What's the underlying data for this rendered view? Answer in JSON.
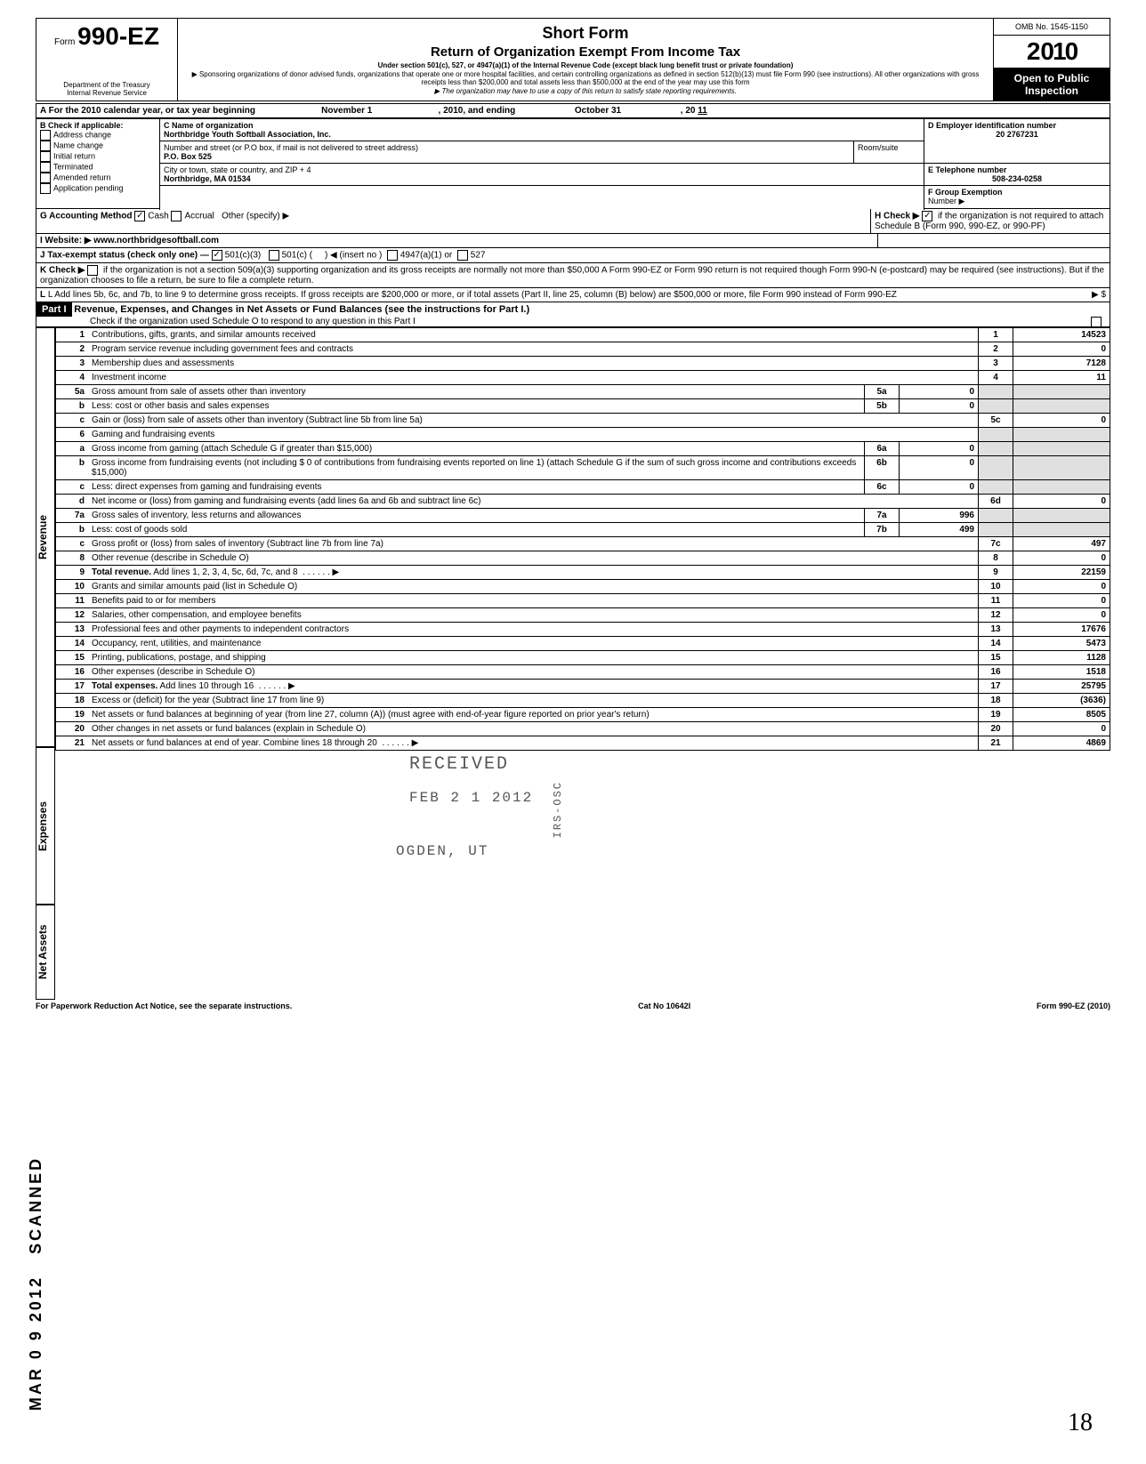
{
  "header": {
    "form_prefix": "Form",
    "form_number": "990-EZ",
    "dept": "Department of the Treasury\nInternal Revenue Service",
    "title1": "Short Form",
    "title2": "Return of Organization Exempt From Income Tax",
    "subtitle": "Under section 501(c), 527, or 4947(a)(1) of the Internal Revenue Code (except black lung benefit trust or private foundation)",
    "note1": "▶ Sponsoring organizations of donor advised funds, organizations that operate one or more hospital facilities, and certain controlling organizations as defined in section 512(b)(13) must file Form 990 (see instructions). All other organizations with gross receipts less than $200,000 and total assets less than $500,000 at the end of the year may use this form",
    "note2": "▶ The organization may have to use a copy of this return to satisfy state reporting requirements.",
    "omb": "OMB No. 1545-1150",
    "year_prefix": "2",
    "year_digits": "010",
    "open": "Open to Public Inspection"
  },
  "period": {
    "line_a": "A  For the 2010 calendar year, or tax year beginning",
    "begin": "November 1",
    "mid": ", 2010, and ending",
    "end": "October 31",
    "end2": ", 20",
    "end_year": "11"
  },
  "checkboxes": {
    "b_label": "B  Check if applicable:",
    "address_change": "Address change",
    "name_change": "Name change",
    "initial_return": "Initial return",
    "terminated": "Terminated",
    "amended_return": "Amended return",
    "application_pending": "Application pending"
  },
  "org": {
    "c_label": "C  Name of organization",
    "name": "Northbridge Youth Softball Association, Inc.",
    "addr_label": "Number and street (or P.O  box, if mail is not delivered to street address)",
    "room_label": "Room/suite",
    "street": "P.O. Box 525",
    "city_label": "City or town, state or country, and ZIP + 4",
    "city": "Northbridge, MA  01534",
    "d_label": "D Employer identification number",
    "ein": "20 2767231",
    "e_label": "E  Telephone number",
    "phone": "508-234-0258",
    "f_label": "F  Group Exemption",
    "f_label2": "Number  ▶"
  },
  "lines_g_k": {
    "g": "G  Accounting Method",
    "cash": "Cash",
    "accrual": "Accrual",
    "other": "Other (specify) ▶",
    "h": "H  Check  ▶",
    "h_text": "if the organization is not required to attach Schedule B (Form 990, 990-EZ, or 990-PF)",
    "i": "I   Website: ▶",
    "website": "www.northbridgesoftball.com",
    "j": "J  Tax-exempt status (check only one) —",
    "j_501c3": "501(c)(3)",
    "j_501c": "501(c) (",
    "j_insert": ")  ◀  (insert no )",
    "j_4947": "4947(a)(1) or",
    "j_527": "527",
    "k": "K  Check  ▶",
    "k_text": "if the organization is not a section 509(a)(3) supporting organization and its gross receipts are normally not more than $50,000   A Form 990-EZ or Form 990 return is not required though Form 990-N (e-postcard) may be required (see instructions). But if the organization chooses to file a return, be sure to file a complete return.",
    "l": "L  Add lines 5b, 6c, and 7b, to line 9 to determine gross receipts. If gross receipts are $200,000 or more, or if total assets (Part II, line  25, column (B) below) are $500,000 or more, file Form 990 instead of Form 990-EZ",
    "l_arrow": "▶   $"
  },
  "part1": {
    "label": "Part I",
    "title": "Revenue, Expenses, and Changes in Net Assets or Fund Balances (see the instructions for Part I.)",
    "check_note": "Check if the organization used Schedule O to respond to any question in this Part I"
  },
  "vert_labels": {
    "revenue": "Revenue",
    "expenses": "Expenses",
    "net_assets": "Net Assets"
  },
  "rows": [
    {
      "n": "1",
      "desc": "Contributions, gifts, grants, and similar amounts received",
      "box": "1",
      "amt": "14523"
    },
    {
      "n": "2",
      "desc": "Program service revenue including government fees and contracts",
      "box": "2",
      "amt": "0"
    },
    {
      "n": "3",
      "desc": "Membership dues and assessments",
      "box": "3",
      "amt": "7128"
    },
    {
      "n": "4",
      "desc": "Investment income",
      "box": "4",
      "amt": "11"
    },
    {
      "n": "5a",
      "desc": "Gross amount from sale of assets other than inventory",
      "sub": "5a",
      "subamt": "0"
    },
    {
      "n": "b",
      "desc": "Less: cost or other basis and sales expenses",
      "sub": "5b",
      "subamt": "0"
    },
    {
      "n": "c",
      "desc": "Gain or (loss) from sale of assets other than inventory (Subtract line 5b from line 5a)",
      "box": "5c",
      "amt": "0"
    },
    {
      "n": "6",
      "desc": "Gaming and fundraising events"
    },
    {
      "n": "a",
      "desc": "Gross income from gaming (attach Schedule G if greater than $15,000)",
      "sub": "6a",
      "subamt": "0"
    },
    {
      "n": "b",
      "desc": "Gross income from fundraising events (not including $                    0 of contributions from fundraising events reported on line 1) (attach Schedule G if the sum of such gross income and contributions exceeds $15,000)",
      "sub": "6b",
      "subamt": "0"
    },
    {
      "n": "c",
      "desc": "Less: direct expenses from gaming and fundraising events",
      "sub": "6c",
      "subamt": "0"
    },
    {
      "n": "d",
      "desc": "Net income or (loss) from gaming and fundraising events (add lines 6a and 6b and subtract line 6c)",
      "box": "6d",
      "amt": "0"
    },
    {
      "n": "7a",
      "desc": "Gross sales of inventory, less returns and allowances",
      "sub": "7a",
      "subamt": "996"
    },
    {
      "n": "b",
      "desc": "Less: cost of goods sold",
      "sub": "7b",
      "subamt": "499"
    },
    {
      "n": "c",
      "desc": "Gross profit or (loss) from sales of inventory (Subtract line 7b from line 7a)",
      "box": "7c",
      "amt": "497"
    },
    {
      "n": "8",
      "desc": "Other revenue (describe in Schedule O)",
      "box": "8",
      "amt": "0"
    },
    {
      "n": "9",
      "desc": "Total revenue. Add lines 1, 2, 3, 4, 5c, 6d, 7c, and 8",
      "box": "9",
      "amt": "22159",
      "bold": true,
      "arrow": true
    },
    {
      "n": "10",
      "desc": "Grants and similar amounts paid (list in Schedule O)",
      "box": "10",
      "amt": "0"
    },
    {
      "n": "11",
      "desc": "Benefits paid to or for members",
      "box": "11",
      "amt": "0"
    },
    {
      "n": "12",
      "desc": "Salaries, other compensation, and employee benefits",
      "box": "12",
      "amt": "0"
    },
    {
      "n": "13",
      "desc": "Professional fees and other payments to independent contractors",
      "box": "13",
      "amt": "17676"
    },
    {
      "n": "14",
      "desc": "Occupancy, rent, utilities, and maintenance",
      "box": "14",
      "amt": "5473"
    },
    {
      "n": "15",
      "desc": "Printing, publications, postage, and shipping",
      "box": "15",
      "amt": "1128"
    },
    {
      "n": "16",
      "desc": "Other expenses (describe in Schedule O)",
      "box": "16",
      "amt": "1518"
    },
    {
      "n": "17",
      "desc": "Total expenses. Add lines 10 through 16",
      "box": "17",
      "amt": "25795",
      "bold": true,
      "arrow": true
    },
    {
      "n": "18",
      "desc": "Excess or (deficit) for the year (Subtract line 17 from line 9)",
      "box": "18",
      "amt": "(3636)"
    },
    {
      "n": "19",
      "desc": "Net assets or fund balances at beginning of year (from line 27, column (A)) (must agree with end-of-year figure reported on prior year's return)",
      "box": "19",
      "amt": "8505"
    },
    {
      "n": "20",
      "desc": "Other changes in net assets or fund balances (explain in Schedule O)",
      "box": "20",
      "amt": "0"
    },
    {
      "n": "21",
      "desc": "Net assets or fund balances at end of year. Combine lines 18 through 20",
      "box": "21",
      "amt": "4869",
      "arrow": true
    }
  ],
  "footer": {
    "left": "For Paperwork Reduction Act Notice, see the separate instructions.",
    "cat": "Cat  No  10642I",
    "right": "Form 990-EZ (2010)"
  },
  "stamps": {
    "received": "RECEIVED",
    "date": "FEB 2 1 2012",
    "loc": "OGDEN, UT",
    "irs": "IRS-OSC",
    "scanned": "SCANNED",
    "mar": "MAR 0 9 2012",
    "hand": "18"
  },
  "colors": {
    "black": "#000000",
    "white": "#ffffff",
    "shade": "#e0e0e0"
  }
}
